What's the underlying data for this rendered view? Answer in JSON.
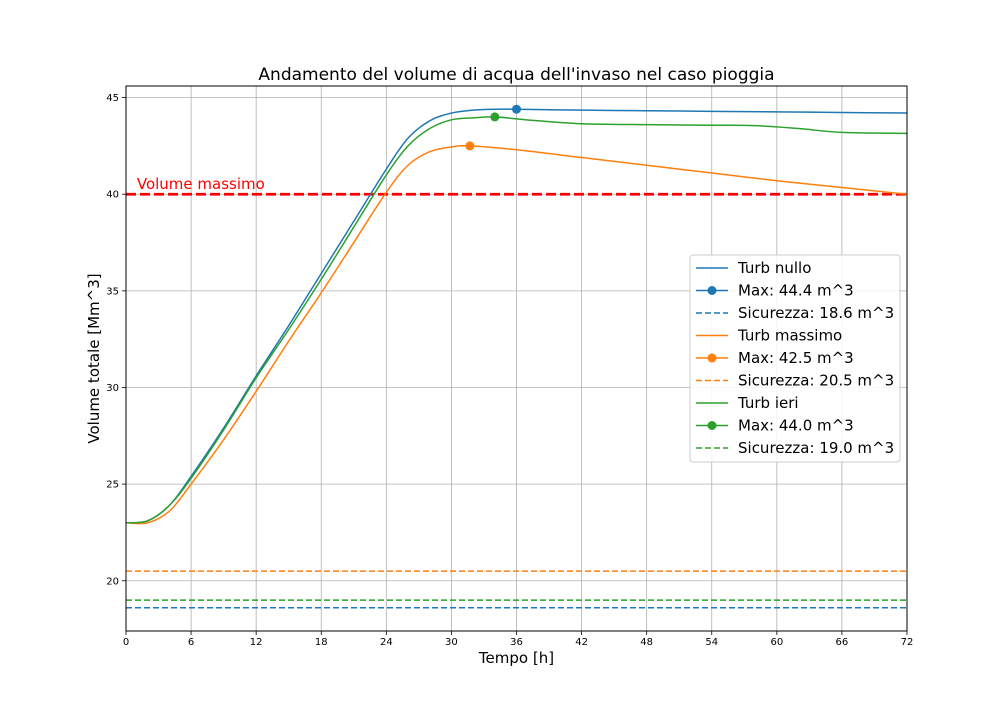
{
  "chart_data": {
    "type": "line",
    "title": "Andamento del volume di acqua dell'invaso nel caso pioggia",
    "xlabel": "Tempo [h]",
    "ylabel": "Volume totale [Mm^3]",
    "xlim": [
      0,
      72
    ],
    "ylim": [
      17.4,
      45.6
    ],
    "xticks": [
      0,
      6,
      12,
      18,
      24,
      30,
      36,
      42,
      48,
      54,
      60,
      66,
      72
    ],
    "yticks": [
      20,
      25,
      30,
      35,
      40,
      45
    ],
    "grid": true,
    "legend_position": "center-right",
    "reference_line": {
      "y": 40,
      "label": "Volume massimo",
      "color": "#ff0000",
      "style": "dashed"
    },
    "series": [
      {
        "name": "Turb nullo",
        "color": "#1f77b4",
        "x": [
          0,
          2,
          4,
          6,
          9,
          12,
          15,
          18,
          21,
          24,
          26,
          28,
          30,
          32,
          34,
          36,
          42,
          48,
          54,
          60,
          66,
          72
        ],
        "y": [
          23.0,
          23.1,
          23.9,
          25.4,
          27.9,
          30.6,
          33.2,
          35.9,
          38.6,
          41.3,
          42.9,
          43.8,
          44.2,
          44.35,
          44.4,
          44.4,
          44.35,
          44.32,
          44.29,
          44.26,
          44.23,
          44.2
        ],
        "max": {
          "x": 36,
          "y": 44.4,
          "label": "Max: 44.4 m^3"
        },
        "safety": {
          "y": 18.6,
          "label": "Sicurezza: 18.6 m^3"
        }
      },
      {
        "name": "Turb massimo",
        "color": "#ff7f0e",
        "x": [
          0,
          2,
          4,
          6,
          9,
          12,
          15,
          18,
          21,
          24,
          26,
          28,
          30,
          31.7,
          36,
          42,
          48,
          54,
          60,
          66,
          72
        ],
        "y": [
          23.0,
          23.0,
          23.6,
          25.0,
          27.3,
          29.8,
          32.4,
          34.9,
          37.5,
          40.1,
          41.5,
          42.2,
          42.45,
          42.5,
          42.3,
          41.9,
          41.5,
          41.1,
          40.7,
          40.35,
          40.0
        ],
        "max": {
          "x": 31.7,
          "y": 42.5,
          "label": "Max: 42.5 m^3"
        },
        "safety": {
          "y": 20.5,
          "label": "Sicurezza: 20.5 m^3"
        }
      },
      {
        "name": "Turb ieri",
        "color": "#2ca02c",
        "x": [
          0,
          2,
          4,
          6,
          9,
          12,
          15,
          18,
          21,
          24,
          26,
          28,
          30,
          32,
          34,
          36,
          38,
          42,
          48,
          54,
          58,
          62,
          66,
          72
        ],
        "y": [
          23.0,
          23.1,
          23.9,
          25.3,
          27.8,
          30.5,
          33.0,
          35.6,
          38.3,
          41.0,
          42.5,
          43.4,
          43.85,
          43.95,
          44.0,
          43.9,
          43.8,
          43.65,
          43.6,
          43.57,
          43.55,
          43.4,
          43.2,
          43.15
        ],
        "max": {
          "x": 34,
          "y": 44.0,
          "label": "Max: 44.0 m^3"
        },
        "safety": {
          "y": 19.0,
          "label": "Sicurezza: 19.0 m^3"
        }
      }
    ]
  }
}
